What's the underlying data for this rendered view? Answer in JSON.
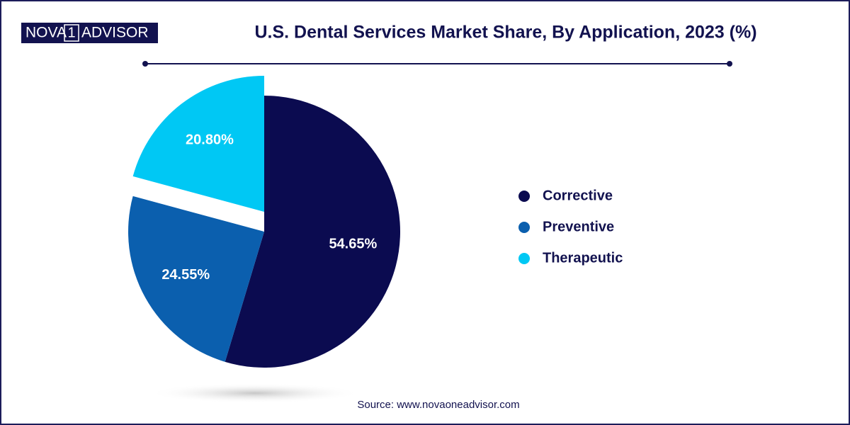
{
  "brand": {
    "left": "NOVA",
    "mark": "1",
    "right": "ADVISOR"
  },
  "chart_data": {
    "type": "pie",
    "title": "U.S. Dental Services Market Share, By Application, 2023 (%)",
    "categories": [
      "Corrective",
      "Preventive",
      "Therapeutic"
    ],
    "values": [
      54.65,
      24.55,
      20.8
    ],
    "value_labels": [
      "54.65%",
      "24.55%",
      "20.80%"
    ],
    "colors": [
      "#0b0b50",
      "#0b5fae",
      "#00c8f4"
    ],
    "legend": "right",
    "source": "Source: www.novaoneadvisor.com"
  }
}
